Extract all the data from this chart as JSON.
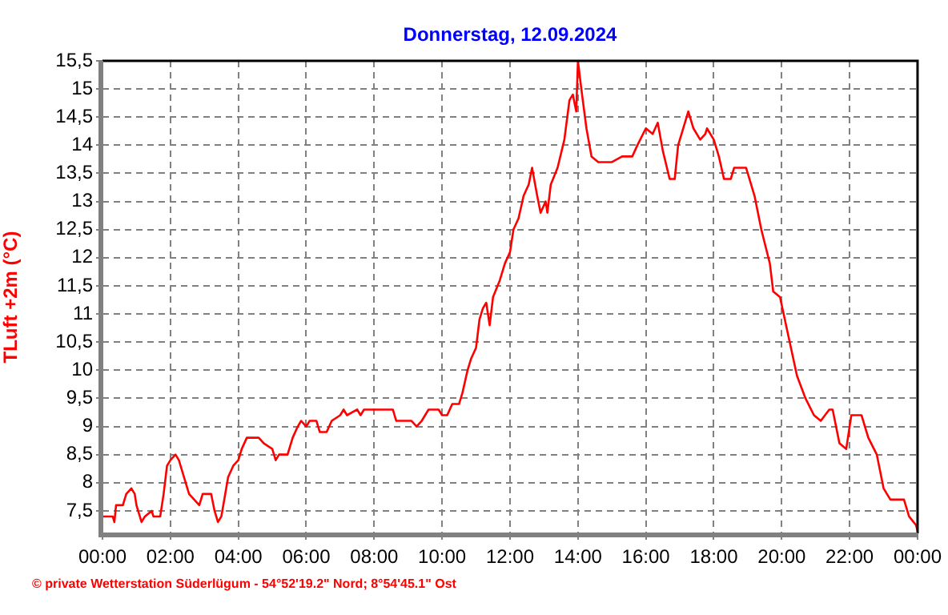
{
  "chart_data": {
    "type": "line",
    "title": "Donnerstag, 12.09.2024",
    "ylabel": "TLuft +2m (°C)",
    "annotations": [
      "© private Wetterstation Süderlügum - 54°52'19.2\" Nord; 8°54'45.1\" Ost"
    ],
    "x": [
      0,
      0.3,
      0.35,
      0.4,
      0.6,
      0.7,
      0.85,
      0.95,
      1.0,
      1.1,
      1.15,
      1.25,
      1.45,
      1.5,
      1.7,
      1.8,
      1.9,
      2.0,
      2.15,
      2.25,
      2.4,
      2.55,
      2.7,
      2.85,
      2.95,
      3.2,
      3.3,
      3.4,
      3.5,
      3.7,
      3.85,
      4.0,
      4.1,
      4.25,
      4.6,
      4.75,
      5.0,
      5.1,
      5.2,
      5.45,
      5.6,
      5.75,
      5.85,
      6.0,
      6.1,
      6.3,
      6.4,
      6.6,
      6.75,
      7.0,
      7.1,
      7.2,
      7.5,
      7.6,
      7.7,
      8.0,
      8.55,
      8.65,
      9.1,
      9.25,
      9.4,
      9.6,
      9.9,
      10.0,
      10.15,
      10.3,
      10.5,
      10.6,
      10.75,
      10.85,
      11.0,
      11.1,
      11.2,
      11.3,
      11.4,
      11.5,
      11.7,
      11.85,
      12.0,
      12.1,
      12.25,
      12.4,
      12.55,
      12.65,
      12.8,
      12.9,
      13.05,
      13.1,
      13.2,
      13.4,
      13.6,
      13.75,
      13.85,
      13.95,
      14.0,
      14.1,
      14.25,
      14.4,
      14.6,
      15.0,
      15.3,
      15.6,
      15.75,
      16.0,
      16.2,
      16.35,
      16.5,
      16.7,
      16.85,
      16.95,
      17.1,
      17.25,
      17.4,
      17.6,
      17.75,
      17.8,
      18.0,
      18.15,
      18.3,
      18.5,
      18.6,
      18.95,
      19.2,
      19.4,
      19.65,
      19.75,
      19.95,
      20.2,
      20.45,
      20.7,
      20.95,
      21.15,
      21.4,
      21.5,
      21.7,
      21.9,
      22.05,
      22.35,
      22.55,
      22.8,
      23.0,
      23.2,
      23.6,
      23.75,
      23.95,
      24.0
    ],
    "series": [
      {
        "color": "#ff0000",
        "values": [
          7.4,
          7.4,
          7.3,
          7.6,
          7.6,
          7.8,
          7.9,
          7.8,
          7.6,
          7.4,
          7.3,
          7.4,
          7.5,
          7.4,
          7.4,
          7.8,
          8.3,
          8.4,
          8.5,
          8.4,
          8.1,
          7.8,
          7.7,
          7.6,
          7.8,
          7.8,
          7.5,
          7.3,
          7.4,
          8.1,
          8.3,
          8.4,
          8.6,
          8.8,
          8.8,
          8.7,
          8.6,
          8.4,
          8.5,
          8.5,
          8.8,
          9.0,
          9.1,
          9.0,
          9.1,
          9.1,
          8.9,
          8.9,
          9.1,
          9.2,
          9.3,
          9.2,
          9.3,
          9.2,
          9.3,
          9.3,
          9.3,
          9.1,
          9.1,
          9.0,
          9.1,
          9.3,
          9.3,
          9.2,
          9.2,
          9.4,
          9.4,
          9.6,
          10.0,
          10.2,
          10.4,
          10.9,
          11.1,
          11.2,
          10.8,
          11.3,
          11.6,
          11.9,
          12.1,
          12.5,
          12.7,
          13.1,
          13.3,
          13.6,
          13.1,
          12.8,
          13.0,
          12.8,
          13.3,
          13.6,
          14.1,
          14.8,
          14.9,
          14.6,
          15.5,
          15.0,
          14.3,
          13.8,
          13.7,
          13.7,
          13.8,
          13.8,
          14.0,
          14.3,
          14.2,
          14.4,
          13.9,
          13.4,
          13.4,
          14.0,
          14.3,
          14.6,
          14.3,
          14.1,
          14.2,
          14.3,
          14.1,
          13.8,
          13.4,
          13.4,
          13.6,
          13.6,
          13.1,
          12.5,
          11.9,
          11.4,
          11.3,
          10.6,
          9.9,
          9.5,
          9.2,
          9.1,
          9.3,
          9.3,
          8.7,
          8.6,
          9.2,
          9.2,
          8.8,
          8.5,
          7.9,
          7.7,
          7.7,
          7.4,
          7.25,
          7.15
        ]
      }
    ],
    "xlim": [
      0,
      24
    ],
    "xticks": [
      {
        "value": 0,
        "label": "00:00"
      },
      {
        "value": 2,
        "label": "02:00"
      },
      {
        "value": 4,
        "label": "04:00"
      },
      {
        "value": 6,
        "label": "06:00"
      },
      {
        "value": 8,
        "label": "08:00"
      },
      {
        "value": 10,
        "label": "10:00"
      },
      {
        "value": 12,
        "label": "12:00"
      },
      {
        "value": 14,
        "label": "14:00"
      },
      {
        "value": 16,
        "label": "16:00"
      },
      {
        "value": 18,
        "label": "18:00"
      },
      {
        "value": 20,
        "label": "20:00"
      },
      {
        "value": 22,
        "label": "22:00"
      },
      {
        "value": 24,
        "label": "00:00"
      }
    ],
    "ylim": [
      7.1,
      15.5
    ],
    "yticks": [
      {
        "value": 7.5,
        "label": "7,5"
      },
      8,
      {
        "value": 8.5,
        "label": "8,5"
      },
      9,
      {
        "value": 9.5,
        "label": "9,5"
      },
      10,
      {
        "value": 10.5,
        "label": "10,5"
      },
      11,
      {
        "value": 11.5,
        "label": "11,5"
      },
      12,
      {
        "value": 12.5,
        "label": "12,5"
      },
      13,
      {
        "value": 13.5,
        "label": "13,5"
      },
      14,
      {
        "value": 14.5,
        "label": "14,5"
      },
      15,
      {
        "value": 15.5,
        "label": "15,5"
      }
    ],
    "grid": true,
    "legend": false,
    "marker": "none",
    "line_style": "solid"
  }
}
